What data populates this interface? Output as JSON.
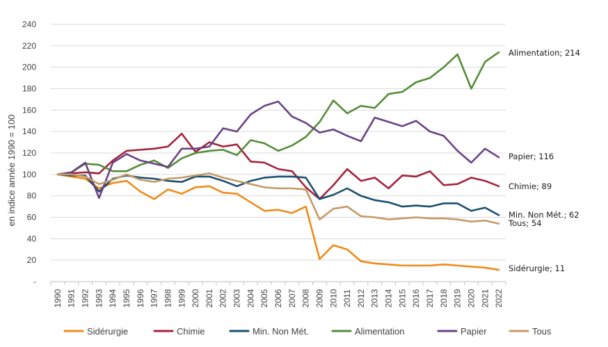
{
  "chart_data": {
    "type": "line",
    "title": "",
    "xlabel": "",
    "ylabel": "en indice année 1990 = 100",
    "ylim": [
      0,
      240
    ],
    "yticks": [
      0,
      20,
      40,
      60,
      80,
      100,
      120,
      140,
      160,
      180,
      200,
      220,
      240
    ],
    "ytick_labels": [
      "-",
      "20",
      "40",
      "60",
      "80",
      "100",
      "120",
      "140",
      "160",
      "180",
      "200",
      "220",
      "240"
    ],
    "grid": true,
    "legend_position": "bottom",
    "x": [
      "1990",
      "1991",
      "1992",
      "1993",
      "1994",
      "1995",
      "1996",
      "1997",
      "1998",
      "1999",
      "2000",
      "2001",
      "2002",
      "2003",
      "2004",
      "2005",
      "2006",
      "2007",
      "2008",
      "2009",
      "2010",
      "2011",
      "2012",
      "2013",
      "2014",
      "2015",
      "2016",
      "2017",
      "2018",
      "2019",
      "2020",
      "2021",
      "2022"
    ],
    "series": [
      {
        "name": "Sidérurgie",
        "color": "#f08a18",
        "end_label": "Sidérurgie;  11",
        "values": [
          100,
          98,
          96,
          87,
          92,
          94,
          84,
          77,
          86,
          82,
          88,
          89,
          83,
          82,
          74,
          66,
          67,
          64,
          70,
          21,
          34,
          30,
          19,
          17,
          16,
          15,
          15,
          15,
          16,
          15,
          14,
          13,
          11
        ]
      },
      {
        "name": "Chimie",
        "color": "#a3223a",
        "end_label": "Chimie;  89",
        "values": [
          100,
          101,
          102,
          101,
          113,
          122,
          123,
          124,
          126,
          138,
          121,
          130,
          126,
          128,
          112,
          111,
          105,
          103,
          88,
          77,
          90,
          105,
          94,
          97,
          87,
          99,
          98,
          103,
          90,
          91,
          97,
          94,
          89
        ]
      },
      {
        "name": "Min. Non Mét.",
        "color": "#1a4e6e",
        "end_label": "Min. Non Mét.;  62",
        "values": [
          100,
          99,
          99,
          84,
          96,
          99,
          97,
          96,
          94,
          93,
          98,
          98,
          94,
          89,
          94,
          97,
          98,
          98,
          97,
          77,
          81,
          87,
          80,
          76,
          74,
          70,
          71,
          70,
          73,
          73,
          66,
          69,
          62
        ]
      },
      {
        "name": "Alimentation",
        "color": "#548b38",
        "end_label": "Alimentation;  214",
        "values": [
          100,
          102,
          110,
          109,
          103,
          103,
          109,
          113,
          106,
          115,
          120,
          122,
          123,
          118,
          132,
          129,
          122,
          127,
          135,
          149,
          169,
          157,
          164,
          162,
          175,
          177,
          186,
          190,
          200,
          212,
          180,
          205,
          214
        ]
      },
      {
        "name": "Papier",
        "color": "#6a4183",
        "end_label": "Papier;  116",
        "values": [
          100,
          102,
          111,
          78,
          111,
          119,
          113,
          110,
          107,
          124,
          124,
          126,
          143,
          140,
          156,
          164,
          168,
          154,
          148,
          139,
          142,
          136,
          131,
          153,
          149,
          145,
          150,
          140,
          136,
          122,
          111,
          124,
          116
        ]
      },
      {
        "name": "Tous",
        "color": "#c49a66",
        "end_label": "Tous;  54",
        "values": [
          100,
          100,
          98,
          91,
          95,
          100,
          95,
          93,
          96,
          97,
          99,
          101,
          97,
          94,
          91,
          88,
          87,
          87,
          86,
          58,
          68,
          70,
          61,
          60,
          58,
          59,
          60,
          59,
          59,
          58,
          56,
          57,
          54
        ]
      }
    ]
  }
}
